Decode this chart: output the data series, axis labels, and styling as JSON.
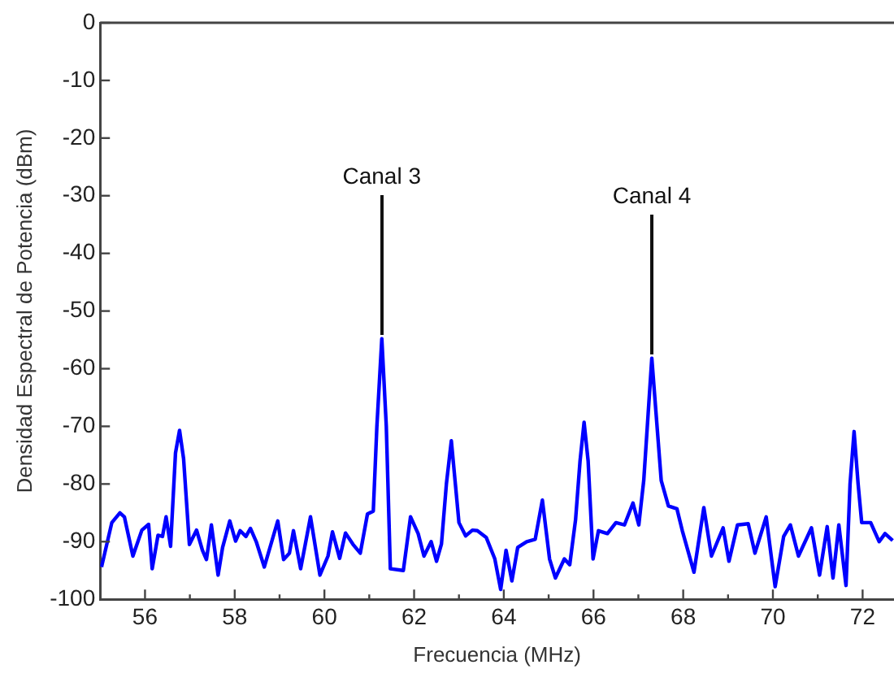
{
  "chart_data": {
    "type": "line",
    "xlabel": "Frecuencia (MHz)",
    "ylabel": "Densidad Espectral de Potencia (dBm)",
    "xlim": [
      55,
      72.7
    ],
    "ylim": [
      -100,
      0
    ],
    "xticks": [
      56,
      {
        "value": 57,
        "label": null
      },
      58,
      {
        "value": 59,
        "label": null
      },
      60,
      {
        "value": 61,
        "label": null
      },
      62,
      {
        "value": 63,
        "label": null
      },
      64,
      {
        "value": 65,
        "label": null
      },
      66,
      {
        "value": 67,
        "label": null
      },
      68,
      {
        "value": 69,
        "label": null
      },
      70,
      {
        "value": 71,
        "label": null
      },
      72
    ],
    "yticks": [
      -100,
      -90,
      -80,
      -70,
      -60,
      -50,
      -40,
      -30,
      -20,
      -10,
      0
    ],
    "grid": false,
    "legend": false,
    "marker": "none",
    "line_style": "solid",
    "annotations": [
      {
        "text": "Canal 3",
        "x": 61.28,
        "y": -54.8
      },
      {
        "text": "Canal 4",
        "x": 67.3,
        "y": -58.2
      }
    ],
    "series": [
      {
        "color": "#0000ff",
        "x": [
          55.03,
          55.26,
          55.44,
          55.54,
          55.73,
          55.93,
          56.08,
          56.16,
          56.29,
          56.39,
          56.47,
          56.57,
          56.68,
          56.77,
          56.86,
          56.99,
          57.15,
          57.28,
          57.37,
          57.48,
          57.63,
          57.73,
          57.89,
          58.02,
          58.12,
          58.25,
          58.35,
          58.48,
          58.66,
          58.96,
          59.09,
          59.22,
          59.31,
          59.47,
          59.69,
          59.9,
          60.08,
          60.18,
          60.34,
          60.47,
          60.64,
          60.8,
          60.96,
          61.09,
          61.17,
          61.28,
          61.38,
          61.47,
          61.76,
          61.92,
          62.09,
          62.22,
          62.38,
          62.5,
          62.61,
          62.72,
          62.83,
          62.92,
          63.0,
          63.15,
          63.3,
          63.41,
          63.61,
          63.8,
          63.93,
          64.05,
          64.18,
          64.31,
          64.51,
          64.7,
          64.86,
          65.02,
          65.15,
          65.35,
          65.47,
          65.6,
          65.7,
          65.79,
          65.88,
          65.99,
          66.11,
          66.31,
          66.5,
          66.69,
          66.88,
          67.01,
          67.12,
          67.3,
          67.51,
          67.67,
          67.86,
          67.98,
          68.24,
          68.46,
          68.63,
          68.89,
          69.02,
          69.21,
          69.45,
          69.6,
          69.85,
          70.05,
          70.24,
          70.39,
          70.57,
          70.86,
          71.04,
          71.21,
          71.34,
          71.47,
          71.63,
          71.72,
          71.81,
          71.9,
          71.98,
          72.18,
          72.37,
          72.5,
          72.67
        ],
        "values": [
          -94.4,
          -86.7,
          -85,
          -85.7,
          -92.5,
          -88,
          -87,
          -94.7,
          -88.9,
          -89.1,
          -85.7,
          -90.8,
          -74.6,
          -70.7,
          -75.6,
          -90.5,
          -88,
          -91.5,
          -93.1,
          -87.1,
          -95.8,
          -91,
          -86.4,
          -89.9,
          -88.1,
          -89.1,
          -87.7,
          -90,
          -94.4,
          -86.4,
          -93.1,
          -92,
          -88.1,
          -94.7,
          -85.7,
          -95.8,
          -92.5,
          -88.3,
          -92.9,
          -88.5,
          -90.5,
          -92,
          -85.2,
          -84.7,
          -70,
          -54.8,
          -70,
          -94.7,
          -95,
          -85.7,
          -88.6,
          -92.5,
          -90,
          -93.4,
          -90.4,
          -80,
          -72.5,
          -80,
          -86.7,
          -89,
          -88,
          -88.1,
          -89.3,
          -93,
          -98.3,
          -91.5,
          -96.8,
          -91,
          -90,
          -89.6,
          -82.8,
          -93,
          -96.3,
          -93,
          -94,
          -86.2,
          -76,
          -69.3,
          -76,
          -93,
          -88.1,
          -88.6,
          -86.7,
          -87.1,
          -83.3,
          -87.1,
          -79.4,
          -58.2,
          -79.4,
          -83.8,
          -84.3,
          -88.1,
          -95.3,
          -84.1,
          -92.5,
          -87.6,
          -93.4,
          -87.1,
          -86.9,
          -92,
          -85.7,
          -97.8,
          -89.1,
          -87.1,
          -92.5,
          -87.6,
          -95.8,
          -87.4,
          -96.3,
          -87.1,
          -97.6,
          -80,
          -70.9,
          -80,
          -86.7,
          -86.7,
          -90,
          -88.6,
          -89.8
        ]
      }
    ]
  }
}
